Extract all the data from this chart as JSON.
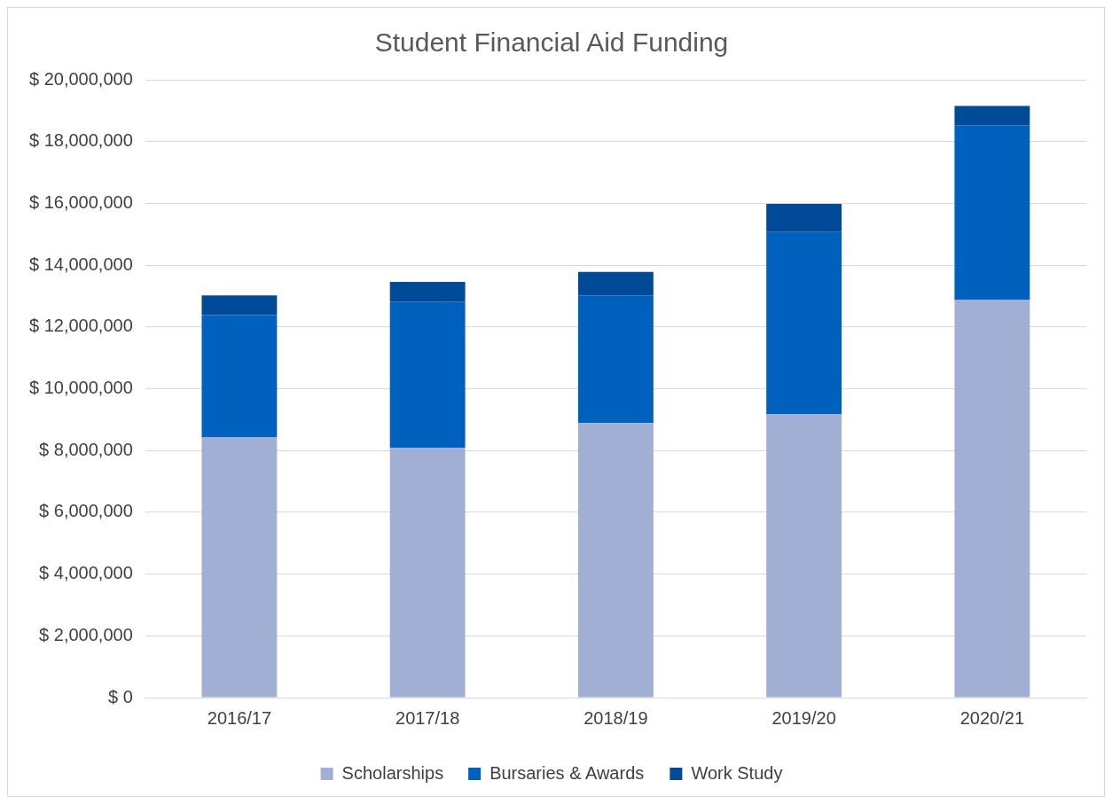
{
  "chart_data": {
    "type": "bar",
    "title": "Student Financial Aid Funding",
    "stacked": true,
    "categories": [
      "2016/17",
      "2017/18",
      "2018/19",
      "2019/20",
      "2020/21"
    ],
    "series": [
      {
        "name": "Scholarships",
        "color": "#a1afd5",
        "values": [
          8420000,
          8090000,
          8890000,
          9180000,
          12870000
        ]
      },
      {
        "name": "Bursaries & Awards",
        "color": "#0060bd",
        "values": [
          3960000,
          4730000,
          4130000,
          5890000,
          5660000
        ]
      },
      {
        "name": "Work Study",
        "color": "#004a98",
        "values": [
          640000,
          640000,
          760000,
          910000,
          620000
        ]
      }
    ],
    "ylim": [
      0,
      20000000
    ],
    "yticks": [
      {
        "value": 0,
        "label": "$ 0"
      },
      {
        "value": 2000000,
        "label": "$ 2,000,000"
      },
      {
        "value": 4000000,
        "label": "$ 4,000,000"
      },
      {
        "value": 6000000,
        "label": "$ 6,000,000"
      },
      {
        "value": 8000000,
        "label": "$ 8,000,000"
      },
      {
        "value": 10000000,
        "label": "$ 10,000,000"
      },
      {
        "value": 12000000,
        "label": "$ 12,000,000"
      },
      {
        "value": 14000000,
        "label": "$ 14,000,000"
      },
      {
        "value": 16000000,
        "label": "$ 16,000,000"
      },
      {
        "value": 18000000,
        "label": "$ 18,000,000"
      },
      {
        "value": 20000000,
        "label": "$ 20,000,000"
      }
    ],
    "grid": "y",
    "legend": "bottom"
  }
}
